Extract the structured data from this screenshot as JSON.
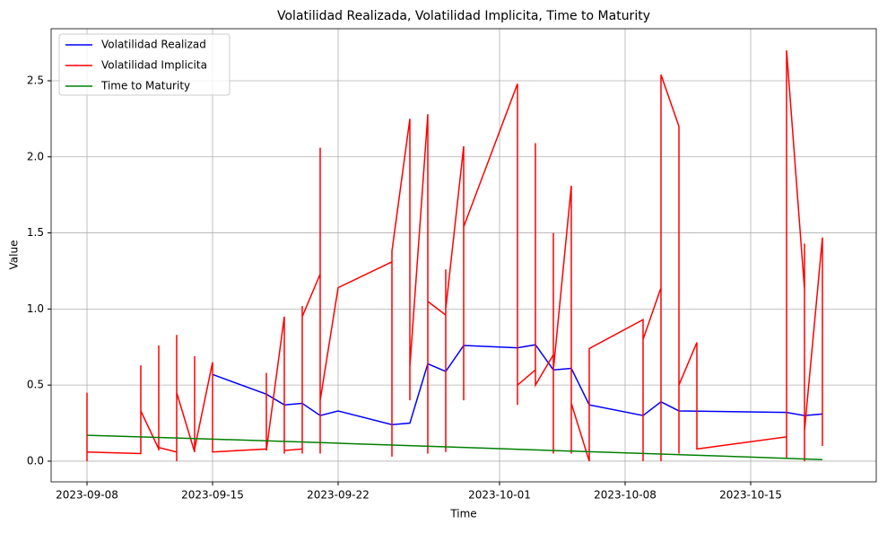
{
  "chart_data": {
    "type": "line",
    "title": "Volatilidad Realizada, Volatilidad Implicita, Time to Maturity",
    "x_label": "Time",
    "y_label": "Value",
    "xlim": [
      "2023-09-06",
      "2023-10-22"
    ],
    "xticks": [
      "2023-09-08",
      "2023-09-15",
      "2023-09-22",
      "2023-10-01",
      "2023-10-08",
      "2023-10-15"
    ],
    "ylim": [
      -0.136,
      2.842
    ],
    "yticks": [
      {
        "value": 0,
        "label": "0.0"
      },
      0.5,
      {
        "value": 1,
        "label": "1.0"
      },
      1.5,
      {
        "value": 2,
        "label": "2.0"
      },
      2.5
    ],
    "grid": true,
    "legend": "upper left",
    "series": [
      {
        "name": "Volatilidad Realizad",
        "color": "#0000ff",
        "x": [
          "2023-09-15",
          "2023-09-18",
          "2023-09-19",
          "2023-09-20",
          "2023-09-21",
          "2023-09-22",
          "2023-09-25",
          "2023-09-26",
          "2023-09-27",
          "2023-09-28",
          "2023-09-29",
          "2023-10-02",
          "2023-10-03",
          "2023-10-04",
          "2023-10-05",
          "2023-10-06",
          "2023-10-09",
          "2023-10-10",
          "2023-10-11",
          "2023-10-17",
          "2023-10-18",
          "2023-10-19"
        ],
        "values": [
          0.57,
          0.44,
          0.37,
          0.38,
          0.3,
          0.33,
          0.24,
          0.25,
          0.64,
          0.59,
          0.76,
          0.745,
          0.765,
          0.6,
          0.61,
          0.37,
          0.3,
          0.39,
          0.33,
          0.32,
          0.3,
          0.31
        ]
      },
      {
        "name": "Volatilidad Implicita",
        "color": "#ff0000",
        "x": [
          "2023-09-08",
          "2023-09-08",
          "2023-09-08",
          "2023-09-08",
          "2023-09-08",
          "2023-09-08",
          "2023-09-11",
          "2023-09-11",
          "2023-09-11",
          "2023-09-12",
          "2023-09-12",
          "2023-09-12",
          "2023-09-12",
          "2023-09-12",
          "2023-09-13",
          "2023-09-13",
          "2023-09-13",
          "2023-09-13",
          "2023-09-13",
          "2023-09-14",
          "2023-09-14",
          "2023-09-14",
          "2023-09-15",
          "2023-09-15",
          "2023-09-18",
          "2023-09-18",
          "2023-09-18",
          "2023-09-19",
          "2023-09-19",
          "2023-09-19",
          "2023-09-19",
          "2023-09-20",
          "2023-09-20",
          "2023-09-20",
          "2023-09-20",
          "2023-09-20",
          "2023-09-21",
          "2023-09-21",
          "2023-09-21",
          "2023-09-21",
          "2023-09-21",
          "2023-09-21",
          "2023-09-21",
          "2023-09-21",
          "2023-09-22",
          "2023-09-25",
          "2023-09-25",
          "2023-09-25",
          "2023-09-25",
          "2023-09-25",
          "2023-09-25",
          "2023-09-26",
          "2023-09-26",
          "2023-09-26",
          "2023-09-26",
          "2023-09-26",
          "2023-09-27",
          "2023-09-27",
          "2023-09-27",
          "2023-09-27",
          "2023-09-27",
          "2023-09-28",
          "2023-09-28",
          "2023-09-28",
          "2023-09-28",
          "2023-09-28",
          "2023-09-28",
          "2023-09-29",
          "2023-09-29",
          "2023-09-29",
          "2023-09-29",
          "2023-10-02",
          "2023-10-02",
          "2023-10-02",
          "2023-10-02",
          "2023-10-03",
          "2023-10-03",
          "2023-10-03",
          "2023-10-04",
          "2023-10-04",
          "2023-10-04",
          "2023-10-04",
          "2023-10-04",
          "2023-10-05",
          "2023-10-05",
          "2023-10-05",
          "2023-10-06",
          "2023-10-06",
          "2023-10-06",
          "2023-10-06",
          "2023-10-06",
          "2023-10-09",
          "2023-10-09",
          "2023-10-09",
          "2023-10-10",
          "2023-10-10",
          "2023-10-10",
          "2023-10-11",
          "2023-10-11",
          "2023-10-11",
          "2023-10-11",
          "2023-10-11",
          "2023-10-12",
          "2023-10-12",
          "2023-10-12",
          "2023-10-17",
          "2023-10-17",
          "2023-10-17",
          "2023-10-17",
          "2023-10-17",
          "2023-10-18",
          "2023-10-18",
          "2023-10-18",
          "2023-10-18",
          "2023-10-19",
          "2023-10-19",
          "2023-10-19",
          "2023-10-19"
        ],
        "values": [
          0.06,
          0.45,
          0.05,
          0.4,
          0.0,
          0.06,
          0.05,
          0.63,
          0.33,
          0.08,
          0.76,
          0.07,
          0.7,
          0.09,
          0.06,
          0.83,
          0.0,
          0.6,
          0.45,
          0.06,
          0.69,
          0.08,
          0.65,
          0.06,
          0.08,
          0.58,
          0.07,
          0.95,
          0.05,
          0.5,
          0.07,
          0.08,
          0.42,
          0.05,
          1.02,
          0.95,
          1.23,
          0.3,
          0.55,
          1.5,
          2.06,
          0.05,
          1.08,
          0.4,
          1.14,
          1.31,
          0.03,
          0.45,
          1.0,
          0.3,
          1.38,
          2.25,
          0.4,
          0.5,
          1.42,
          0.62,
          2.28,
          0.05,
          1.28,
          0.5,
          1.05,
          0.96,
          0.06,
          1.26,
          0.3,
          0.6,
          1.0,
          2.07,
          0.4,
          0.67,
          1.54,
          2.48,
          0.37,
          0.6,
          0.5,
          0.6,
          2.09,
          0.5,
          0.7,
          0.3,
          1.5,
          0.05,
          0.6,
          1.81,
          0.05,
          0.38,
          0.0,
          0.45,
          0.0,
          0.68,
          0.74,
          0.93,
          0.0,
          0.8,
          1.14,
          0.0,
          2.54,
          2.2,
          0.05,
          1.0,
          0.05,
          0.5,
          0.78,
          0.1,
          0.08,
          0.16,
          0.85,
          0.02,
          1.0,
          2.7,
          1.13,
          0.0,
          1.43,
          0.2,
          1.47,
          0.1,
          0.86,
          0.14
        ]
      },
      {
        "name": "Time to Maturity",
        "color": "#008000",
        "x": [
          "2023-09-08",
          "2023-09-15",
          "2023-09-22",
          "2023-09-29",
          "2023-10-06",
          "2023-10-13",
          "2023-10-19"
        ],
        "values": [
          0.17,
          0.145,
          0.118,
          0.09,
          0.062,
          0.035,
          0.01
        ]
      }
    ]
  }
}
